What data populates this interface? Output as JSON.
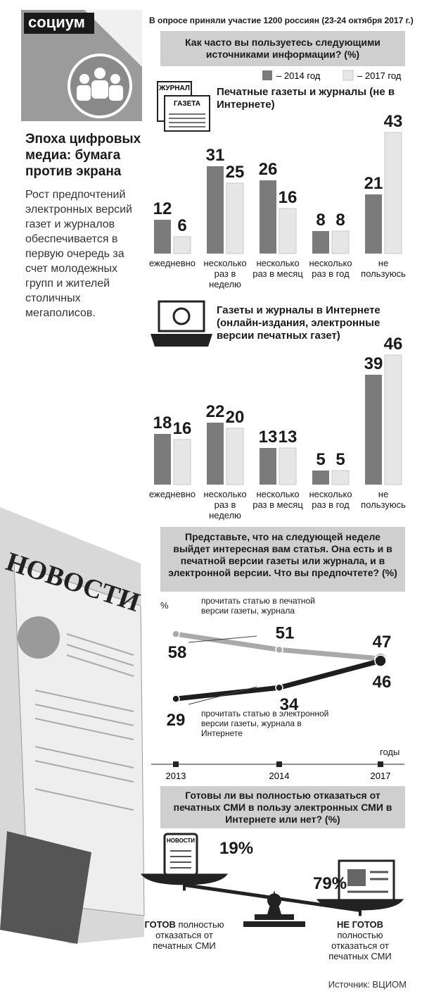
{
  "header": {
    "rubric": "социум",
    "headline": "Эпоха цифровых медиа: бумага против экрана",
    "lead": "Рост предпочтений электронных версий газет и журналов обеспечивается в первую очередь за счет молодежных групп и жителей столичных мегаполисов.",
    "survey_note": "В опросе приняли участие 1200 россиян (23-24 октября 2017 г.)"
  },
  "icons": {
    "magazine": "ЖУРНАЛ",
    "newspaper": "ГАЗЕТА",
    "tablet": "НОВОСТИ",
    "illustration": "НОВОСТИ"
  },
  "source": "Источник: ВЦИОМ",
  "chart_data": [
    {
      "type": "bar",
      "title": "Как часто вы пользуетесь следующими источниками информации? (%)",
      "subtitle": "Печатные газеты и журналы (не в Интернете)",
      "categories": [
        "ежедневно",
        "несколько раз в неделю",
        "несколько раз в месяц",
        "несколько раз в год",
        "не пользуюсь"
      ],
      "series": [
        {
          "name": "– 2014 год",
          "color": "#7b7b7b",
          "values": [
            12,
            31,
            26,
            8,
            21
          ]
        },
        {
          "name": "– 2017 год",
          "color": "#e6e6e6",
          "values": [
            6,
            25,
            16,
            8,
            43
          ]
        }
      ]
    },
    {
      "type": "bar",
      "subtitle": "Газеты и журналы в Интернете (онлайн-издания, электронные версии печатных газет)",
      "categories": [
        "ежедневно",
        "несколько раз в неделю",
        "несколько раз в месяц",
        "несколько раз в год",
        "не пользуюсь"
      ],
      "series": [
        {
          "color": "#7b7b7b",
          "values": [
            18,
            22,
            13,
            5,
            39
          ]
        },
        {
          "color": "#e6e6e6",
          "values": [
            16,
            20,
            13,
            5,
            46
          ]
        }
      ]
    },
    {
      "type": "line",
      "title": "Представьте, что на следующей неделе выйдет интересная вам статья. Она есть и в печатной версии газеты или журнала, и в электронной версии. Что вы предпочтете? (%)",
      "y_label": "%",
      "x_label": "годы",
      "categories": [
        "2013",
        "2014",
        "2017"
      ],
      "series": [
        {
          "name": "прочитать статью в печатной версии газеты, журнала",
          "color": "#a9a9a9",
          "values": [
            58,
            51,
            47
          ]
        },
        {
          "name": "прочитать статью в электронной версии газеты, журнала в Интернете",
          "color": "#1e1e1e",
          "values": [
            29,
            34,
            46
          ]
        }
      ]
    },
    {
      "type": "balance",
      "title": "Готовы ли вы полностью отказаться от печатных СМИ в пользу электронных СМИ в Интернете или нет? (%)",
      "categories": [
        "ГОТОВ",
        "НЕ ГОТОВ"
      ],
      "category_notes": [
        "полностью отказаться от печатных СМИ",
        "полностью отказаться от печатных СМИ"
      ],
      "values": [
        19,
        79
      ],
      "value_labels": [
        "19%",
        "79%"
      ]
    }
  ]
}
